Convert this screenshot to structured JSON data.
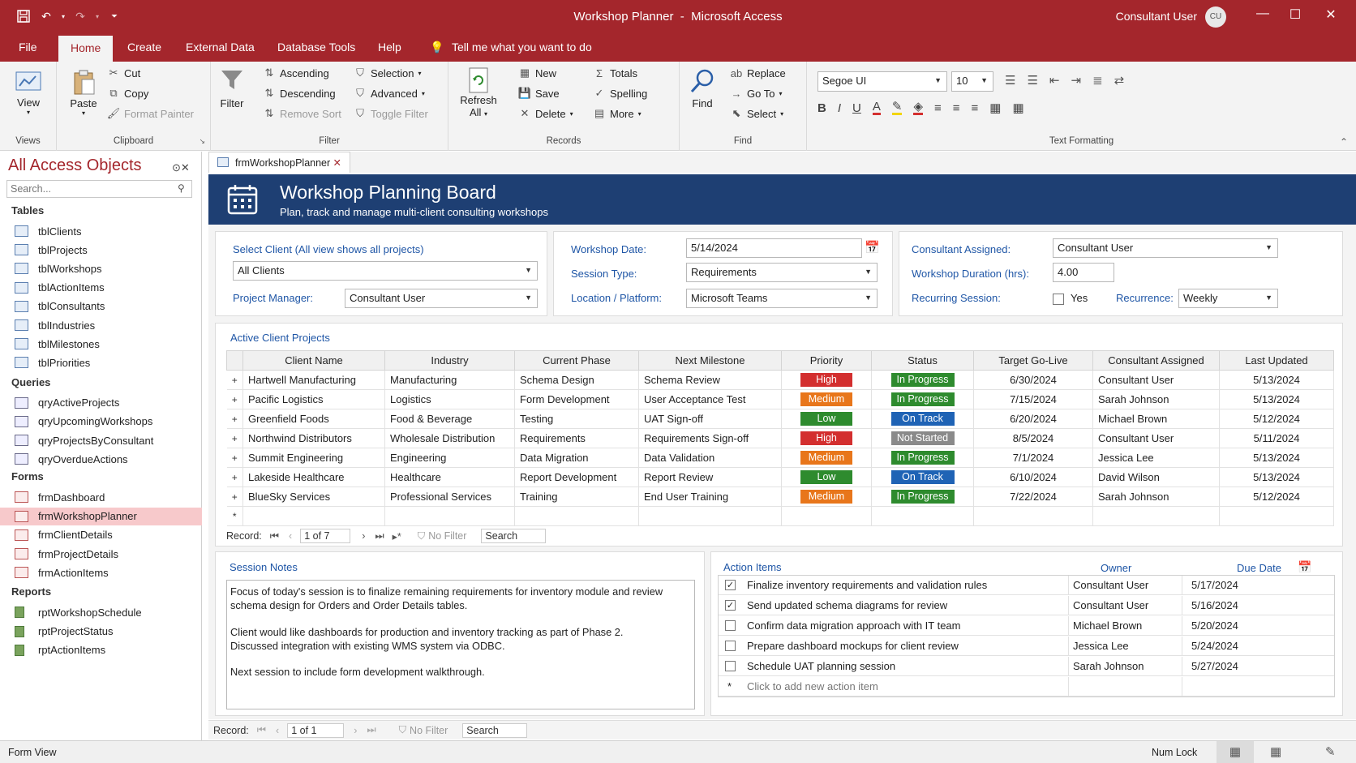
{
  "window": {
    "title": "Workshop Planner",
    "app": "Microsoft Access",
    "user": "Consultant User",
    "avatar": "CU"
  },
  "menu": {
    "tabs": [
      "File",
      "Home",
      "Create",
      "External Data",
      "Database Tools",
      "Help"
    ],
    "tell": "Tell me what you want to do"
  },
  "ribbon": {
    "views": {
      "view": "View",
      "group": "Views"
    },
    "clipboard": {
      "paste": "Paste",
      "cut": "Cut",
      "copy": "Copy",
      "format_painter": "Format Painter",
      "group": "Clipboard"
    },
    "filter": {
      "filter": "Filter",
      "ascending": "Ascending",
      "descending": "Descending",
      "remove_sort": "Remove Sort",
      "selection": "Selection",
      "advanced": "Advanced",
      "toggle_filter": "Toggle Filter",
      "group": "Filter"
    },
    "records": {
      "refresh": "Refresh",
      "all": "All",
      "new": "New",
      "save": "Save",
      "delete": "Delete",
      "totals": "Totals",
      "spelling": "Spelling",
      "more": "More",
      "group": "Records"
    },
    "find": {
      "find": "Find",
      "replace": "Replace",
      "goto": "Go To",
      "select": "Select",
      "group": "Find"
    },
    "text": {
      "font": "Segoe UI",
      "size": "10",
      "group": "Text Formatting"
    }
  },
  "nav": {
    "title": "All Access Objects",
    "search_placeholder": "Search...",
    "tables_label": "Tables",
    "tables": [
      "tblClients",
      "tblProjects",
      "tblWorkshops",
      "tblActionItems",
      "tblConsultants",
      "tblIndustries",
      "tblMilestones",
      "tblPriorities"
    ],
    "queries_label": "Queries",
    "queries": [
      "qryActiveProjects",
      "qryUpcomingWorkshops",
      "qryProjectsByConsultant",
      "qryOverdueActions"
    ],
    "forms_label": "Forms",
    "forms": [
      "frmDashboard",
      "frmWorkshopPlanner",
      "frmClientDetails",
      "frmProjectDetails",
      "frmActionItems"
    ],
    "reports_label": "Reports",
    "reports": [
      "rptWorkshopSchedule",
      "rptProjectStatus",
      "rptActionItems"
    ]
  },
  "doc_tab": "frmWorkshopPlanner",
  "banner": {
    "title": "Workshop Planning Board",
    "subtitle": "Plan, track and manage multi-client consulting workshops"
  },
  "filters": {
    "select_client_label": "Select Client (All view shows all projects)",
    "select_client": "All Clients",
    "pm_label": "Project Manager:",
    "pm": "Consultant User",
    "date_label": "Workshop Date:",
    "date": "5/14/2024",
    "session_type_label": "Session Type:",
    "session_type": "Requirements",
    "location_label": "Location / Platform:",
    "location": "Microsoft Teams",
    "consultant_label": "Consultant Assigned:",
    "consultant": "Consultant User",
    "duration_label": "Workshop Duration (hrs):",
    "duration": "4.00",
    "recurring_label": "Recurring Session:",
    "recurring_yes": "Yes",
    "recurrence_label": "Recurrence:",
    "recurrence": "Weekly"
  },
  "projects": {
    "title": "Active Client Projects",
    "columns": [
      "Client Name",
      "Industry",
      "Current Phase",
      "Next Milestone",
      "Priority",
      "Status",
      "Target Go-Live",
      "Consultant Assigned",
      "Last Updated"
    ],
    "rows": [
      {
        "client": "Hartwell Manufacturing",
        "industry": "Manufacturing",
        "phase": "Schema Design",
        "milestone": "Schema Review",
        "priority": "High",
        "status": "In Progress",
        "golive": "6/30/2024",
        "consultant": "Consultant User",
        "updated": "5/13/2024"
      },
      {
        "client": "Pacific Logistics",
        "industry": "Logistics",
        "phase": "Form Development",
        "milestone": "User Acceptance Test",
        "priority": "Medium",
        "status": "In Progress",
        "golive": "7/15/2024",
        "consultant": "Sarah Johnson",
        "updated": "5/13/2024"
      },
      {
        "client": "Greenfield Foods",
        "industry": "Food & Beverage",
        "phase": "Testing",
        "milestone": "UAT Sign-off",
        "priority": "Low",
        "status": "On Track",
        "golive": "6/20/2024",
        "consultant": "Michael Brown",
        "updated": "5/12/2024"
      },
      {
        "client": "Northwind Distributors",
        "industry": "Wholesale Distribution",
        "phase": "Requirements",
        "milestone": "Requirements Sign-off",
        "priority": "High",
        "status": "Not Started",
        "golive": "8/5/2024",
        "consultant": "Consultant User",
        "updated": "5/11/2024"
      },
      {
        "client": "Summit Engineering",
        "industry": "Engineering",
        "phase": "Data Migration",
        "milestone": "Data Validation",
        "priority": "Medium",
        "status": "In Progress",
        "golive": "7/1/2024",
        "consultant": "Jessica Lee",
        "updated": "5/13/2024"
      },
      {
        "client": "Lakeside Healthcare",
        "industry": "Healthcare",
        "phase": "Report Development",
        "milestone": "Report Review",
        "priority": "Low",
        "status": "On Track",
        "golive": "6/10/2024",
        "consultant": "David Wilson",
        "updated": "5/13/2024"
      },
      {
        "client": "BlueSky Services",
        "industry": "Professional Services",
        "phase": "Training",
        "milestone": "End User Training",
        "priority": "Medium",
        "status": "In Progress",
        "golive": "7/22/2024",
        "consultant": "Sarah Johnson",
        "updated": "5/12/2024"
      }
    ],
    "record": {
      "label": "Record:",
      "pos": "1 of 7",
      "nofilter": "No Filter",
      "search": "Search"
    }
  },
  "colors": {
    "High": "#d32f2f",
    "Medium": "#e8761b",
    "Low": "#2e8b2e",
    "In Progress": "#2e8b2e",
    "On Track": "#1f63b5",
    "Not Started": "#8a8a8a"
  },
  "notes": {
    "title": "Session Notes",
    "lines": [
      "Focus of today's session is to finalize remaining requirements for inventory module and review",
      "schema design for Orders and Order Details tables.",
      "",
      "Client would like dashboards for production and inventory tracking as part of Phase 2.",
      "Discussed integration with existing WMS system via ODBC.",
      "",
      "Next session to include form development walkthrough."
    ]
  },
  "actions": {
    "title": "Action Items",
    "owner_label": "Owner",
    "due_label": "Due Date",
    "items": [
      {
        "done": true,
        "text": "Finalize inventory requirements and validation rules",
        "owner": "Consultant User",
        "due": "5/17/2024"
      },
      {
        "done": true,
        "text": "Send updated schema diagrams for review",
        "owner": "Consultant User",
        "due": "5/16/2024"
      },
      {
        "done": false,
        "text": "Confirm data migration approach with IT team",
        "owner": "Michael Brown",
        "due": "5/20/2024"
      },
      {
        "done": false,
        "text": "Prepare dashboard mockups for client review",
        "owner": "Jessica Lee",
        "due": "5/24/2024"
      },
      {
        "done": false,
        "text": "Schedule UAT planning session",
        "owner": "Sarah Johnson",
        "due": "5/27/2024"
      }
    ],
    "add_placeholder": "Click to add new action item"
  },
  "main_record": {
    "label": "Record:",
    "pos": "1 of 1",
    "nofilter": "No Filter",
    "search": "Search"
  },
  "status": {
    "view": "Form View",
    "numlock": "Num Lock"
  }
}
